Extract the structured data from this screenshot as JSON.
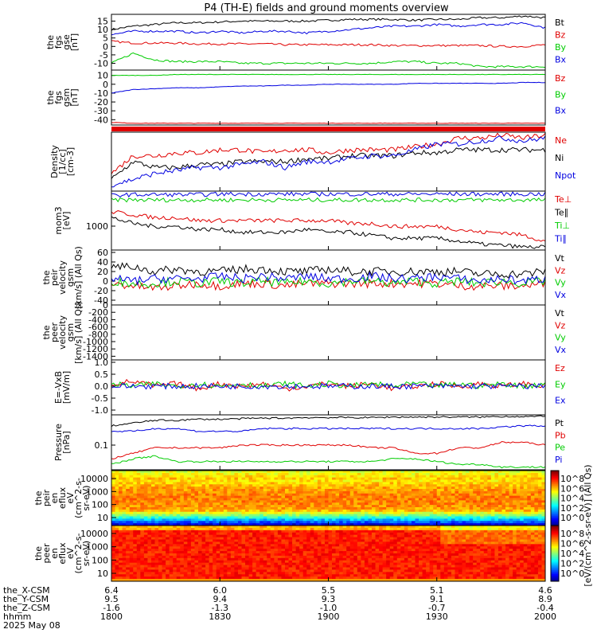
{
  "title": "P4 (TH-E) fields and ground moments overview",
  "colors": {
    "black": "#000000",
    "red": "#e00000",
    "green": "#00cc00",
    "blue": "#0000e0"
  },
  "chart_data": [
    {
      "type": "line",
      "id": "fgs_gse",
      "ylabel_lines": [
        "the",
        "fgs",
        "gse",
        "[nT]"
      ],
      "yticks": [
        "15",
        "10",
        "5",
        "0",
        "-5",
        "-10"
      ],
      "ylim": [
        -14,
        19
      ],
      "series": [
        {
          "name": "Bt",
          "color": "#000000",
          "values": [
            10,
            12,
            13,
            14,
            14,
            14.5,
            15,
            15,
            15,
            15,
            15.5,
            16,
            16,
            16,
            15.5,
            16,
            16,
            17,
            17,
            18,
            17
          ]
        },
        {
          "name": "Bz",
          "color": "#e00000",
          "values": [
            3,
            2,
            2,
            2,
            1.5,
            1.5,
            1.5,
            1.5,
            1,
            1,
            1,
            1,
            1,
            0.5,
            0.5,
            0.5,
            0.5,
            0.5,
            0,
            0,
            1
          ]
        },
        {
          "name": "By",
          "color": "#00cc00",
          "values": [
            -10,
            -4,
            -8,
            -9,
            -9,
            -9,
            -10,
            -10,
            -10,
            -10,
            -10,
            -10,
            -10,
            -9,
            -9,
            -10,
            -10,
            -12,
            -12,
            -12,
            -12
          ]
        },
        {
          "name": "Bx",
          "color": "#0000e0",
          "values": [
            7,
            9,
            9,
            9,
            8,
            9,
            8,
            9,
            9,
            8,
            9,
            10,
            11,
            12,
            12,
            13,
            12,
            13,
            13,
            14,
            11
          ]
        }
      ]
    },
    {
      "type": "line",
      "id": "fgs_gsm",
      "ylabel_lines": [
        "the",
        "fgs",
        "gsm",
        "[nT]"
      ],
      "yticks": [
        "10",
        "0",
        "-10",
        "-20",
        "-30",
        "-40"
      ],
      "ylim": [
        -46,
        16
      ],
      "series": [
        {
          "name": "Bz",
          "color": "#e00000",
          "values": [
            -43,
            -44,
            -44,
            -44,
            -44,
            -44,
            -44,
            -44,
            -44,
            -44,
            -44,
            -44,
            -44,
            -44,
            -44,
            -44,
            -44,
            -44,
            -44,
            -44,
            -44
          ]
        },
        {
          "name": "By",
          "color": "#00cc00",
          "values": [
            10,
            10,
            10,
            11,
            11,
            11,
            11,
            11,
            11,
            11,
            11,
            11,
            11,
            11,
            11,
            11,
            11,
            11,
            11,
            11,
            11
          ]
        },
        {
          "name": "Bx",
          "color": "#0000e0",
          "values": [
            -10,
            -6,
            -5,
            -4,
            -4,
            -3,
            -2,
            -2,
            -1,
            -1,
            0,
            0,
            0,
            0,
            1,
            1,
            1,
            1,
            1,
            2,
            2
          ]
        }
      ]
    },
    {
      "type": "line",
      "id": "density",
      "ylabel_lines": [
        "Density",
        "[1/cc]",
        "[cm-3]"
      ],
      "yticks": [],
      "ylim": [
        0,
        10
      ],
      "series": [
        {
          "name": "Ne",
          "color": "#e00000",
          "values": [
            3,
            6,
            6,
            6.5,
            6.5,
            7,
            7,
            6.5,
            7,
            7,
            6.5,
            7,
            7,
            7,
            7.5,
            8,
            9,
            9,
            9.5,
            9,
            9.5
          ]
        },
        {
          "name": "Ni",
          "color": "#000000",
          "values": [
            2,
            5,
            4,
            4,
            4.5,
            4.5,
            5,
            5,
            5,
            5.5,
            5.5,
            6,
            6,
            6,
            6.5,
            6.5,
            7,
            7,
            7,
            7,
            7
          ]
        },
        {
          "name": "Npot",
          "color": "#0000e0",
          "values": [
            1,
            2,
            3,
            3.5,
            4,
            4,
            4.5,
            5,
            4,
            5,
            5,
            5.5,
            6,
            6,
            7,
            8,
            8,
            8.5,
            9,
            8.5,
            9
          ]
        }
      ]
    },
    {
      "type": "line",
      "id": "moms_temp",
      "ylabel_lines": [
        "mom3",
        "[eV]"
      ],
      "yticks": [
        "1000"
      ],
      "ylim": [
        0,
        10
      ],
      "series": [
        {
          "name": "Te⊥",
          "color": "#e00000",
          "values": [
            6.5,
            6,
            5.5,
            5.5,
            5,
            5,
            5,
            5,
            5,
            5,
            5,
            4.5,
            4.5,
            4,
            4,
            4,
            3.5,
            3,
            3,
            2.5,
            1.5
          ]
        },
        {
          "name": "Te∥",
          "color": "#000000",
          "values": [
            5.5,
            4.5,
            4,
            4,
            3.5,
            3.5,
            3,
            3,
            3,
            3.5,
            3,
            3,
            2.5,
            2,
            2,
            2,
            1.5,
            1,
            0.8,
            0.5,
            0.5
          ]
        },
        {
          "name": "Ti⊥",
          "color": "#00cc00",
          "values": [
            8.5,
            8.5,
            8.5,
            8.5,
            8.5,
            8.5,
            8.5,
            8.5,
            8.5,
            8.5,
            8.5,
            8.5,
            8.5,
            8.5,
            8.5,
            8.5,
            8.5,
            8.5,
            8.5,
            8.5,
            8.5
          ]
        },
        {
          "name": "Ti∥",
          "color": "#0000e0",
          "values": [
            9.3,
            9.4,
            9.4,
            9.4,
            9.4,
            9.5,
            9.5,
            9.5,
            9.5,
            9.5,
            9.5,
            9.5,
            9.5,
            9.5,
            9.5,
            9.5,
            9.5,
            9.5,
            9.5,
            9.5,
            9.5
          ]
        }
      ]
    },
    {
      "type": "line",
      "id": "peir_vel",
      "ylabel_lines": [
        "the",
        "peir",
        "velocity",
        "gsm",
        "[km/s] (All Qs)"
      ],
      "yticks": [
        "60",
        "40",
        "20",
        "0",
        "-20",
        "-40"
      ],
      "ylim": [
        -50,
        65
      ],
      "series": [
        {
          "name": "Vt",
          "color": "#000000",
          "values": [
            30,
            30,
            20,
            25,
            20,
            20,
            25,
            25,
            20,
            20,
            25,
            20,
            20,
            20,
            20,
            20,
            20,
            15,
            15,
            15,
            20
          ]
        },
        {
          "name": "Vz",
          "color": "#e00000",
          "values": [
            -5,
            -10,
            -15,
            -10,
            -5,
            -10,
            -5,
            -5,
            -10,
            -5,
            -5,
            -5,
            -5,
            -5,
            -5,
            -5,
            -10,
            -10,
            -10,
            -10,
            -5
          ]
        },
        {
          "name": "Vy",
          "color": "#00cc00",
          "values": [
            0,
            -5,
            -5,
            0,
            -5,
            0,
            -5,
            0,
            -5,
            0,
            -5,
            0,
            0,
            -5,
            0,
            -5,
            0,
            -5,
            0,
            -5,
            0
          ]
        },
        {
          "name": "Vx",
          "color": "#0000e0",
          "values": [
            5,
            0,
            5,
            5,
            5,
            10,
            5,
            10,
            5,
            10,
            5,
            5,
            10,
            5,
            5,
            10,
            5,
            0,
            5,
            0,
            5
          ]
        }
      ]
    },
    {
      "type": "line",
      "id": "peer_vel",
      "ylabel_lines": [
        "the",
        "peer",
        "velocity",
        "gsm",
        "[km/s] (All Qs)"
      ],
      "yticks": [
        "0",
        "-200",
        "-400",
        "-600",
        "-800",
        "-1000",
        "-1200",
        "-1400"
      ],
      "ylim": [
        -1500,
        0
      ],
      "series": [
        {
          "name": "Vt",
          "color": "#000000",
          "values": []
        },
        {
          "name": "Vz",
          "color": "#e00000",
          "values": []
        },
        {
          "name": "Vy",
          "color": "#00cc00",
          "values": []
        },
        {
          "name": "Vx",
          "color": "#0000e0",
          "values": []
        }
      ]
    },
    {
      "type": "line",
      "id": "e_vxb",
      "ylabel_lines": [
        "E=-VxB",
        "[mV/m]"
      ],
      "yticks": [
        "1.0",
        "0.5",
        "0.0",
        "-0.5",
        "-1.0"
      ],
      "ylim": [
        -1.2,
        1.1
      ],
      "series": [
        {
          "name": "Ez",
          "color": "#e00000",
          "values": [
            0.1,
            0.2,
            0.0,
            0.1,
            -0.1,
            0.1,
            0.0,
            0.1,
            -0.1,
            0.0,
            0.1,
            0.0,
            0.1,
            -0.1,
            0.0,
            0.1,
            0.0,
            0.1,
            0.0,
            0.1,
            0.0
          ]
        },
        {
          "name": "Ey",
          "color": "#00cc00",
          "values": [
            0.1,
            0.0,
            0.1,
            0.0,
            0.1,
            0.0,
            0.1,
            0.0,
            0.1,
            0.0,
            0.1,
            0.0,
            0.1,
            0.0,
            0.1,
            0.0,
            0.1,
            0.0,
            0.1,
            0.0,
            0.1
          ]
        },
        {
          "name": "Ex",
          "color": "#0000e0",
          "values": [
            0.0,
            0.0,
            0.0,
            0.0,
            0.0,
            0.0,
            0.0,
            0.0,
            0.0,
            0.0,
            0.0,
            0.0,
            0.0,
            0.0,
            0.0,
            0.0,
            0.0,
            0.0,
            0.0,
            0.0,
            0.0
          ]
        }
      ]
    },
    {
      "type": "line",
      "id": "pressure",
      "ylabel_lines": [
        "Pressure",
        "[nPa]"
      ],
      "yticks": [
        "0.1"
      ],
      "ylim": [
        0,
        10
      ],
      "series": [
        {
          "name": "Pt",
          "color": "#000000",
          "values": [
            8,
            8.5,
            9,
            9,
            9.2,
            9.2,
            9.3,
            9.4,
            9.4,
            9.5,
            9.5,
            9.5,
            9.5,
            9.6,
            9.6,
            9.6,
            9.6,
            9.6,
            9.7,
            9.7,
            9.7
          ]
        },
        {
          "name": "Pb",
          "color": "#e00000",
          "values": [
            2,
            3,
            4,
            4,
            4,
            4,
            4.5,
            4.5,
            4.5,
            4.5,
            4.5,
            4.5,
            4,
            4,
            3,
            3,
            4,
            4,
            5,
            5,
            4.5
          ]
        },
        {
          "name": "Pe",
          "color": "#00cc00",
          "values": [
            1,
            2,
            2.5,
            1.5,
            1.5,
            1.5,
            1.5,
            1.5,
            1.5,
            1.5,
            1.5,
            1.5,
            1.5,
            2,
            2,
            1.5,
            1,
            1,
            0.5,
            0.5,
            0.5
          ]
        },
        {
          "name": "Pi",
          "color": "#0000e0",
          "values": [
            7,
            7,
            7.5,
            7.5,
            7,
            7,
            7,
            7.5,
            7.5,
            7.5,
            7.5,
            7.5,
            7.5,
            7.5,
            7.5,
            7.5,
            7.5,
            7.5,
            7.8,
            8,
            8
          ]
        }
      ]
    },
    {
      "type": "heatmap",
      "id": "peir_en",
      "ylabel_lines": [
        "the",
        "peir",
        "en",
        "eflux",
        "eV",
        "(cm^2-s-",
        "sr-eV)"
      ],
      "yticks": [
        "10000",
        "1000",
        "100",
        "10"
      ]
    },
    {
      "type": "heatmap",
      "id": "peer_en",
      "ylabel_lines": [
        "the",
        "peer",
        "en",
        "eflux",
        "eV",
        "(cm^2-s-",
        "sr-eV)"
      ],
      "yticks": [
        "10000",
        "1000",
        "100",
        "10"
      ]
    }
  ],
  "colorbar": {
    "label": "[eV/(cm^2-s-sr-eV)] (All Qs)",
    "ticks_top": [
      "10^8",
      "10^6",
      "10^4",
      "10^2",
      "10^0"
    ],
    "ticks_bottom": [
      "10^8",
      "10^6",
      "10^4",
      "10^2",
      "10^0"
    ]
  },
  "xaxis": {
    "row_labels": [
      "the_X-CSM",
      "the_Y-CSM",
      "the_Z-CSM",
      "hhmm",
      "2025 May 08"
    ],
    "ticks": [
      {
        "values": [
          "6.4",
          "9.5",
          "-1.6",
          "1800"
        ]
      },
      {
        "values": [
          "6.0",
          "9.4",
          "-1.3",
          "1830"
        ]
      },
      {
        "values": [
          "5.5",
          "9.3",
          "-1.0",
          "1900"
        ]
      },
      {
        "values": [
          "5.1",
          "9.1",
          "-0.7",
          "1930"
        ]
      },
      {
        "values": [
          "4.6",
          "8.9",
          "-0.4",
          "2000"
        ]
      }
    ]
  }
}
